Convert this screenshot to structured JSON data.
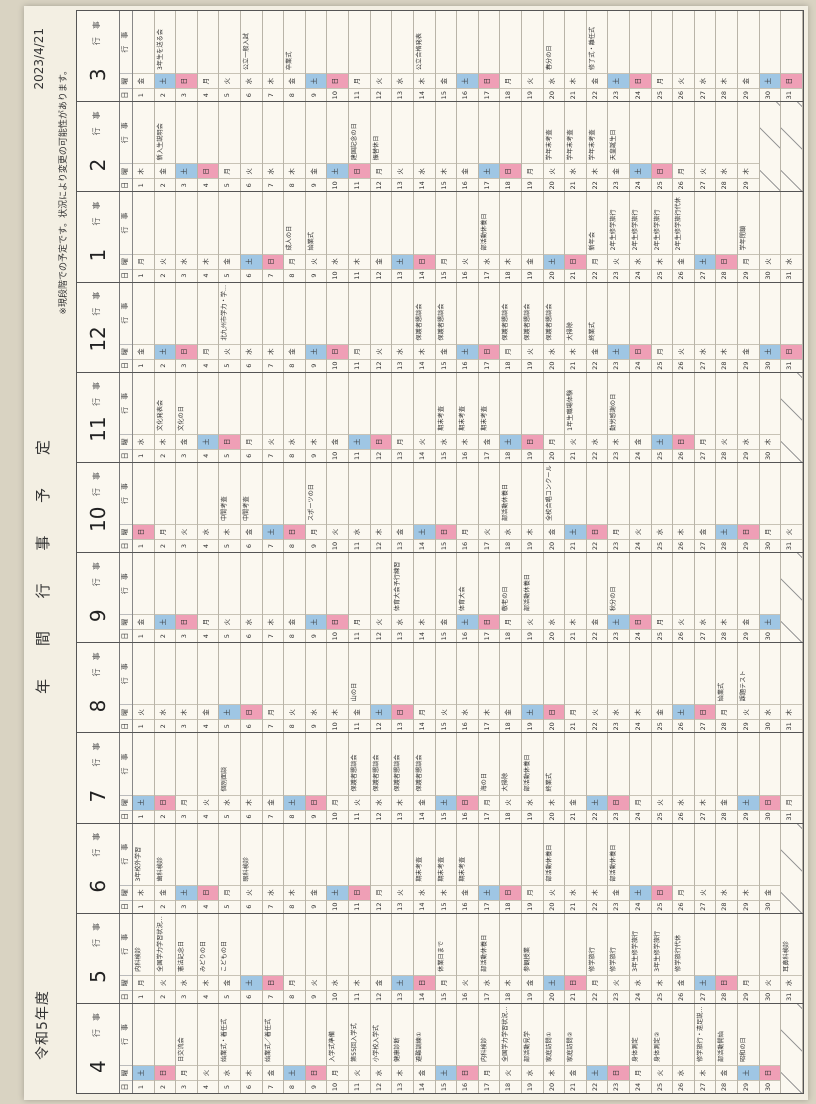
{
  "header": {
    "year_label": "令和5年度",
    "title": "年 間 行 事 予 定",
    "note": "※現段階での予定です。状況により変更の可能性があります。",
    "date": "2023/4/21"
  },
  "column_labels": {
    "day": "日",
    "weekday": "曜",
    "event": "行　事"
  },
  "months": [
    {
      "label": "4",
      "start": 6,
      "days": 30,
      "events": {
        "3": "日交流会",
        "5": "始業式・着任式",
        "7": "始業式／着任式",
        "10": "入学式準備",
        "11": "第55回入学式",
        "12": "小学校入学式",
        "13": "健康診断",
        "14": "避難訓練①",
        "17": "内科検診",
        "18": "全国学力学習状況調査",
        "19": "部活動見学",
        "20": "家庭訪問①",
        "21": "家庭訪問②",
        "24": "身体測定",
        "25": "身体測定②",
        "27": "修学旅行・遠足説明会",
        "28": "部活動開始",
        "29": "昭和の日"
      }
    },
    {
      "label": "5",
      "start": 1,
      "days": 31,
      "events": {
        "1": "内科検診",
        "2": "全国学力学習状況調査",
        "3": "憲法記念日",
        "4": "みどりの日",
        "5": "こどもの日",
        "15": "休業日まで",
        "17": "部活動休養日",
        "19": "参観授業",
        "22": "修学旅行",
        "23": "修学旅行",
        "24": "3年生修学旅行",
        "25": "3年生修学旅行",
        "26": "修学旅行代休",
        "31": "耳鼻科検診"
      }
    },
    {
      "label": "6",
      "start": 4,
      "days": 30,
      "events": {
        "1": "3年校外学習",
        "2": "歯科検診",
        "6": "眼科検診",
        "14": "期末考査",
        "15": "期末考査",
        "16": "期末考査",
        "20": "部活動休養日",
        "23": "部活動休養日"
      }
    },
    {
      "label": "7",
      "start": 6,
      "days": 31,
      "events": {
        "5": "個別面談",
        "11": "保護者懇談会",
        "12": "保護者懇談会",
        "13": "保護者懇談会",
        "14": "保護者懇談会",
        "17": "海の日",
        "18": "大掃除",
        "19": "部活動休養日",
        "20": "終業式"
      }
    },
    {
      "label": "8",
      "start": 2,
      "days": 31,
      "events": {
        "11": "山の日",
        "28": "始業式",
        "29": "課題テスト"
      }
    },
    {
      "label": "9",
      "start": 5,
      "days": 30,
      "events": {
        "13": "体育大会予行練習",
        "16": "体育大会",
        "18": "敬老の日",
        "19": "部活動休養日",
        "23": "秋分の日"
      }
    },
    {
      "label": "10",
      "start": 0,
      "days": 31,
      "events": {
        "5": "中間考査",
        "6": "中間考査",
        "9": "スポーツの日",
        "18": "部活動休養日",
        "20": "全校合唱コンクール"
      }
    },
    {
      "label": "11",
      "start": 3,
      "days": 30,
      "events": {
        "2": "文化発表会",
        "3": "文化の日",
        "15": "期末考査",
        "16": "期末考査",
        "17": "期末考査",
        "21": "1年生職場体験",
        "23": "勤労感謝の日"
      }
    },
    {
      "label": "12",
      "start": 5,
      "days": 31,
      "events": {
        "5": "北九州市学力・学習状況調査",
        "14": "保護者懇談会",
        "15": "保護者懇談会",
        "18": "保護者懇談会",
        "19": "保護者懇談会",
        "20": "保護者懇談会",
        "21": "大掃除",
        "22": "終業式"
      }
    },
    {
      "label": "1",
      "start": 1,
      "days": 31,
      "events": {
        "8": "成人の日",
        "9": "始業式",
        "17": "部活動休養日",
        "22": "新年会",
        "23": "2年生修学旅行",
        "24": "2年生修学旅行",
        "25": "2年生修学旅行",
        "26": "2年生修学旅行代休",
        "29": "学年閉鎖"
      }
    },
    {
      "label": "2",
      "start": 4,
      "days": 29,
      "events": {
        "2": "新入生説明会",
        "11": "建国記念の日",
        "12": "振替休日",
        "20": "学年末考査",
        "21": "学年末考査",
        "22": "学年末考査",
        "23": "天皇誕生日"
      }
    },
    {
      "label": "3",
      "start": 5,
      "days": 31,
      "events": {
        "2": "3年生を送る会",
        "6": "公立一般入試",
        "8": "卒業式",
        "14": "公立合格発表",
        "20": "春分の日",
        "22": "修了式・離任式"
      }
    }
  ],
  "weekdays": [
    "日",
    "月",
    "火",
    "水",
    "木",
    "金",
    "土"
  ],
  "colors": {
    "saturday": "#9fc6e4",
    "sunday": "#ef9fb6",
    "arrow": "#b9d6ec"
  }
}
